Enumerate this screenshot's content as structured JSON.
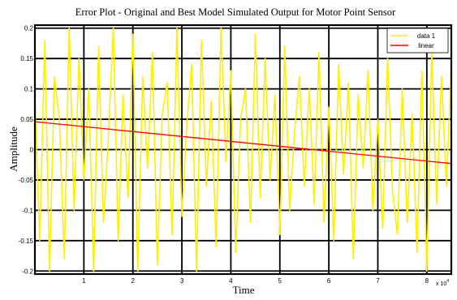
{
  "chart_data": {
    "type": "line",
    "title": "Error Plot - Original and Best Model Simulated Output for Motor Point Sensor",
    "xlabel": "Time",
    "ylabel": "Amplitude",
    "x_multiplier_label": "x 10",
    "x_multiplier_exp": "4",
    "xlim": [
      0,
      85000
    ],
    "ylim": [
      -0.205,
      0.205
    ],
    "x_ticks": [
      {
        "value": 10000,
        "label": "1"
      },
      {
        "value": 20000,
        "label": "2"
      },
      {
        "value": 30000,
        "label": "3"
      },
      {
        "value": 40000,
        "label": "4"
      },
      {
        "value": 50000,
        "label": "5"
      },
      {
        "value": 60000,
        "label": "6"
      },
      {
        "value": 70000,
        "label": "7"
      },
      {
        "value": 80000,
        "label": "8"
      }
    ],
    "y_ticks": [
      {
        "value": 0.2,
        "label": "0.2"
      },
      {
        "value": 0.15,
        "label": "0.15"
      },
      {
        "value": 0.1,
        "label": "0.1"
      },
      {
        "value": 0.05,
        "label": "0.05"
      },
      {
        "value": 0,
        "label": "0"
      },
      {
        "value": -0.05,
        "label": "-0.05"
      },
      {
        "value": -0.1,
        "label": "-0.1"
      },
      {
        "value": -0.15,
        "label": "-0.15"
      },
      {
        "value": -0.2,
        "label": "-0.2"
      }
    ],
    "grid": true,
    "legend_position": "top-right",
    "series": [
      {
        "name": "data 1",
        "color": "#ffee00",
        "x": [
          0,
          1000,
          2000,
          3000,
          4000,
          5000,
          6000,
          7000,
          8000,
          9000,
          10000,
          11000,
          12000,
          13000,
          14000,
          15000,
          16000,
          17000,
          18000,
          19000,
          20000,
          21000,
          22000,
          23000,
          24000,
          25000,
          26000,
          27000,
          28000,
          29000,
          30000,
          31000,
          32000,
          33000,
          34000,
          35000,
          36000,
          37000,
          38000,
          39000,
          40000,
          41000,
          42000,
          43000,
          44000,
          45000,
          46000,
          47000,
          48000,
          49000,
          50000,
          51000,
          52000,
          53000,
          54000,
          55000,
          56000,
          57000,
          58000,
          59000,
          60000,
          61000,
          62000,
          63000,
          64000,
          65000,
          66000,
          67000,
          68000,
          69000,
          70000,
          71000,
          72000,
          73000,
          74000,
          75000,
          76000,
          77000,
          78000,
          79000,
          80000,
          81000,
          82000,
          83000,
          84000,
          85000
        ],
        "y": [
          0.08,
          -0.15,
          0.18,
          -0.2,
          0.12,
          0.05,
          -0.18,
          0.2,
          -0.1,
          0.15,
          -0.05,
          0.1,
          -0.2,
          0.17,
          -0.12,
          0.02,
          0.2,
          -0.15,
          0.09,
          -0.08,
          0.19,
          -0.2,
          0.12,
          -0.03,
          0.16,
          -0.19,
          0.06,
          0.11,
          -0.14,
          0.2,
          -0.11,
          0.04,
          0.14,
          -0.2,
          0.18,
          -0.06,
          0.08,
          -0.16,
          0.2,
          -0.02,
          0.13,
          -0.17,
          0.05,
          0.1,
          -0.12,
          0.19,
          -0.08,
          0.15,
          -0.05,
          0.09,
          -0.14,
          0.17,
          -0.1,
          0.03,
          0.12,
          -0.06,
          0.1,
          -0.09,
          0.16,
          -0.12,
          0.07,
          -0.15,
          0.14,
          -0.04,
          0.11,
          -0.18,
          0.09,
          -0.03,
          0.13,
          -0.1,
          0.05,
          -0.13,
          0.15,
          -0.07,
          -0.14,
          0.1,
          -0.12,
          0.06,
          -0.17,
          0.13,
          -0.2,
          0.16,
          -0.09,
          0.12,
          -0.06,
          0.14
        ]
      },
      {
        "name": "linear",
        "color": "#ff0000",
        "x": [
          0,
          85000
        ],
        "y": [
          0.046,
          -0.023
        ]
      }
    ]
  }
}
